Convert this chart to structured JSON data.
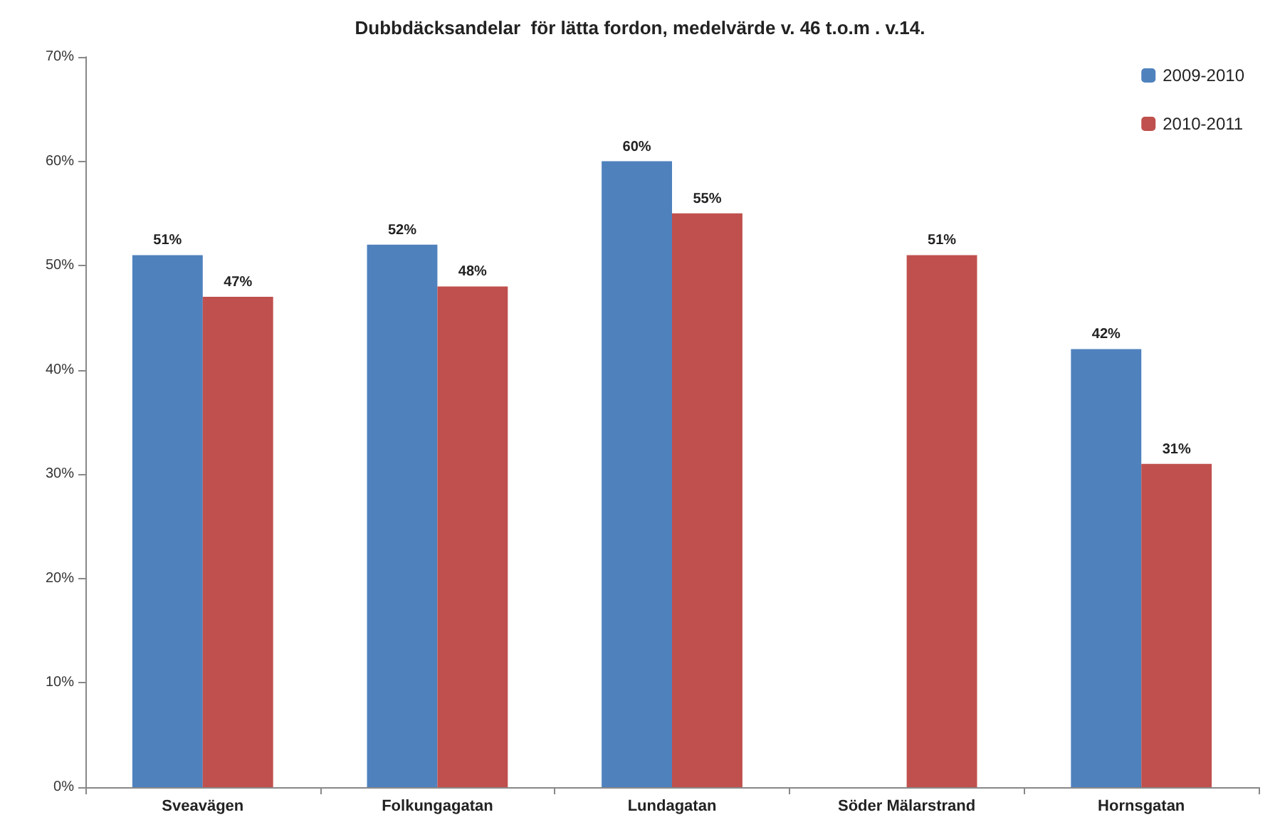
{
  "chart_data": {
    "type": "bar",
    "title": "Dubbdäcksandelar  för lätta fordon, medelvärde v. 46 t.o.m . v.14.",
    "categories": [
      "Sveavägen",
      "Folkungagatan",
      "Lundagatan",
      "Söder Mälarstrand",
      "Hornsgatan"
    ],
    "series": [
      {
        "name": "2009-2010",
        "color": "#4f81bd",
        "values": [
          51,
          52,
          60,
          null,
          42
        ],
        "value_labels": [
          "51%",
          "52%",
          "60%",
          null,
          "42%"
        ]
      },
      {
        "name": "2010-2011",
        "color": "#c0504d",
        "values": [
          47,
          48,
          55,
          51,
          31
        ],
        "value_labels": [
          "47%",
          "48%",
          "55%",
          "51%",
          "31%"
        ]
      }
    ],
    "ylim": [
      0,
      70
    ],
    "yticks": [
      {
        "value": 0,
        "label": "0%"
      },
      {
        "value": 10,
        "label": "10%"
      },
      {
        "value": 20,
        "label": "20%"
      },
      {
        "value": 30,
        "label": "30%"
      },
      {
        "value": 40,
        "label": "40%"
      },
      {
        "value": 50,
        "label": "50%"
      },
      {
        "value": 60,
        "label": "60%"
      },
      {
        "value": 70,
        "label": "70%"
      }
    ],
    "grid": false,
    "legend": "top right"
  }
}
